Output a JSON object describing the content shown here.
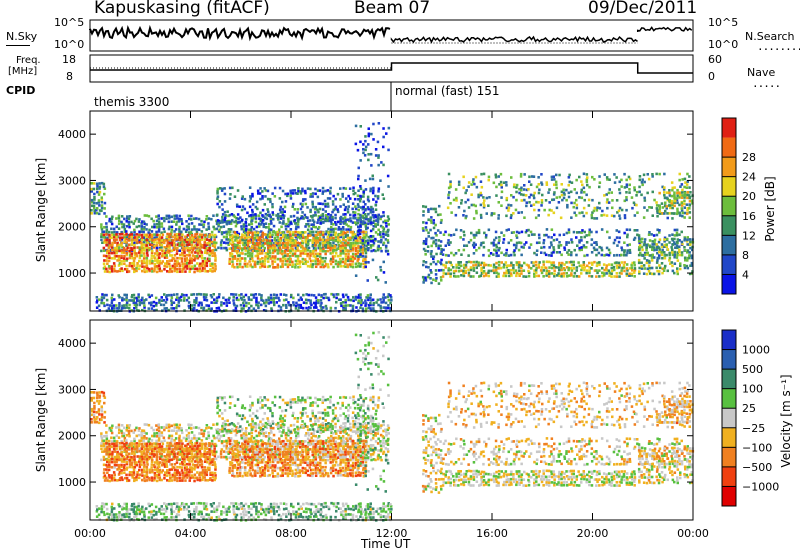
{
  "header": {
    "title": "Kapuskasing (fitACF)",
    "beam": "Beam 07",
    "date": "09/Dec/2011"
  },
  "side_labels": {
    "nsky": "N.Sky",
    "nsearch": "N.Search",
    "freq_line1": "Freq.",
    "freq_line2": "[MHz]",
    "nave": "Nave",
    "cpid": "CPID"
  },
  "noise_axis": {
    "left_top": "10^5",
    "left_bottom": "10^0",
    "right_top": "10^5",
    "right_bottom": "10^0"
  },
  "freq_axis": {
    "left_top": "18",
    "left_bottom": "8",
    "right_top": "60",
    "right_bottom": "0"
  },
  "cpid_segments": [
    {
      "label": "themis 3300",
      "start_hour": 0,
      "end_hour": 12
    },
    {
      "label": "normal (fast) 151",
      "start_hour": 12,
      "end_hour": 24
    }
  ],
  "chart_data": [
    {
      "type": "heatmap",
      "name": "power",
      "x_range_hours": [
        0,
        24
      ],
      "xticks": [
        "00:00",
        "04:00",
        "08:00",
        "12:00",
        "16:00",
        "20:00",
        "00:00"
      ],
      "ylabel": "Slant Range [km]",
      "ylim": [
        180,
        4500
      ],
      "yticks": [
        1000,
        2000,
        3000,
        4000
      ],
      "colorbar": {
        "label": "Power [dB]",
        "ticks": [
          "4",
          "8",
          "12",
          "16",
          "20",
          "24",
          "28"
        ],
        "colors": [
          "#0a14e6",
          "#2147c8",
          "#2d6ea0",
          "#3a9060",
          "#6cbd3c",
          "#e6d21e",
          "#f29b1a",
          "#f06a14",
          "#e02014"
        ]
      }
    },
    {
      "type": "heatmap",
      "name": "velocity",
      "x_range_hours": [
        0,
        24
      ],
      "xticks": [
        "00:00",
        "04:00",
        "08:00",
        "12:00",
        "16:00",
        "20:00",
        "00:00"
      ],
      "xlabel": "Time UT",
      "ylabel": "Slant Range [km]",
      "ylim": [
        180,
        4500
      ],
      "yticks": [
        1000,
        2000,
        3000,
        4000
      ],
      "colorbar": {
        "label": "Velocity [m s⁻¹]",
        "ticks": [
          "1000",
          "500",
          "100",
          "25",
          "−25",
          "−100",
          "−500",
          "−1000"
        ],
        "colors": [
          "#1a2ec8",
          "#2a5fb0",
          "#3a8a6a",
          "#58c040",
          "#c8c8c8",
          "#f0b020",
          "#f08020",
          "#f04010",
          "#e00000"
        ]
      }
    }
  ]
}
